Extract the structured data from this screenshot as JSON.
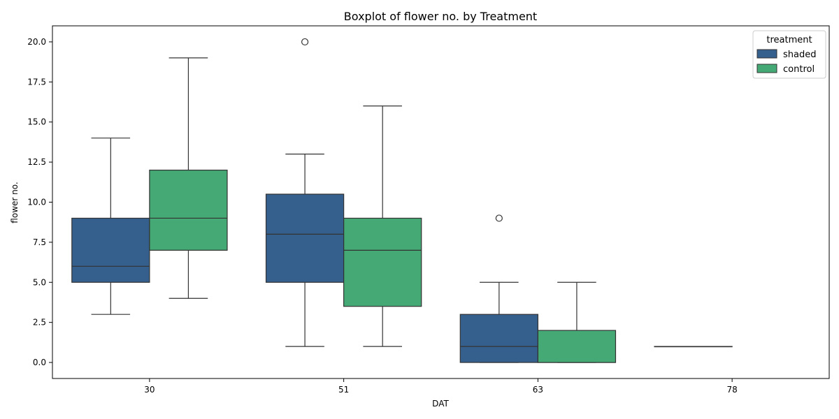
{
  "chart_data": {
    "type": "box",
    "title": "Boxplot of flower no. by Treatment",
    "xlabel": "DAT",
    "ylabel": "flower no.",
    "categories": [
      "30",
      "51",
      "63",
      "78"
    ],
    "ylim": [
      -1,
      21
    ],
    "yticks": [
      "0.0",
      "2.5",
      "5.0",
      "7.5",
      "10.0",
      "12.5",
      "15.0",
      "17.5",
      "20.0"
    ],
    "legend": {
      "title": "treatment",
      "placement": "top-right"
    },
    "series": [
      {
        "name": "shaded",
        "color": "#355f8d",
        "boxes": [
          {
            "category": "30",
            "whisker_low": 3,
            "q1": 5,
            "median": 6,
            "q3": 9,
            "whisker_high": 14,
            "outliers": []
          },
          {
            "category": "51",
            "whisker_low": 1,
            "q1": 5,
            "median": 8,
            "q3": 10.5,
            "whisker_high": 13,
            "outliers": [
              20
            ]
          },
          {
            "category": "63",
            "whisker_low": 0,
            "q1": 0,
            "median": 1,
            "q3": 3,
            "whisker_high": 5,
            "outliers": [
              9
            ]
          },
          {
            "category": "78",
            "whisker_low": 1,
            "q1": 1,
            "median": 1,
            "q3": 1,
            "whisker_high": 1,
            "outliers": []
          }
        ]
      },
      {
        "name": "control",
        "color": "#44a974",
        "boxes": [
          {
            "category": "30",
            "whisker_low": 4,
            "q1": 7,
            "median": 9,
            "q3": 12,
            "whisker_high": 19,
            "outliers": []
          },
          {
            "category": "51",
            "whisker_low": 1,
            "q1": 3.5,
            "median": 7,
            "q3": 9,
            "whisker_high": 16,
            "outliers": []
          },
          {
            "category": "63",
            "whisker_low": 0,
            "q1": 0,
            "median": 0,
            "q3": 2,
            "whisker_high": 5,
            "outliers": []
          }
        ]
      }
    ]
  }
}
